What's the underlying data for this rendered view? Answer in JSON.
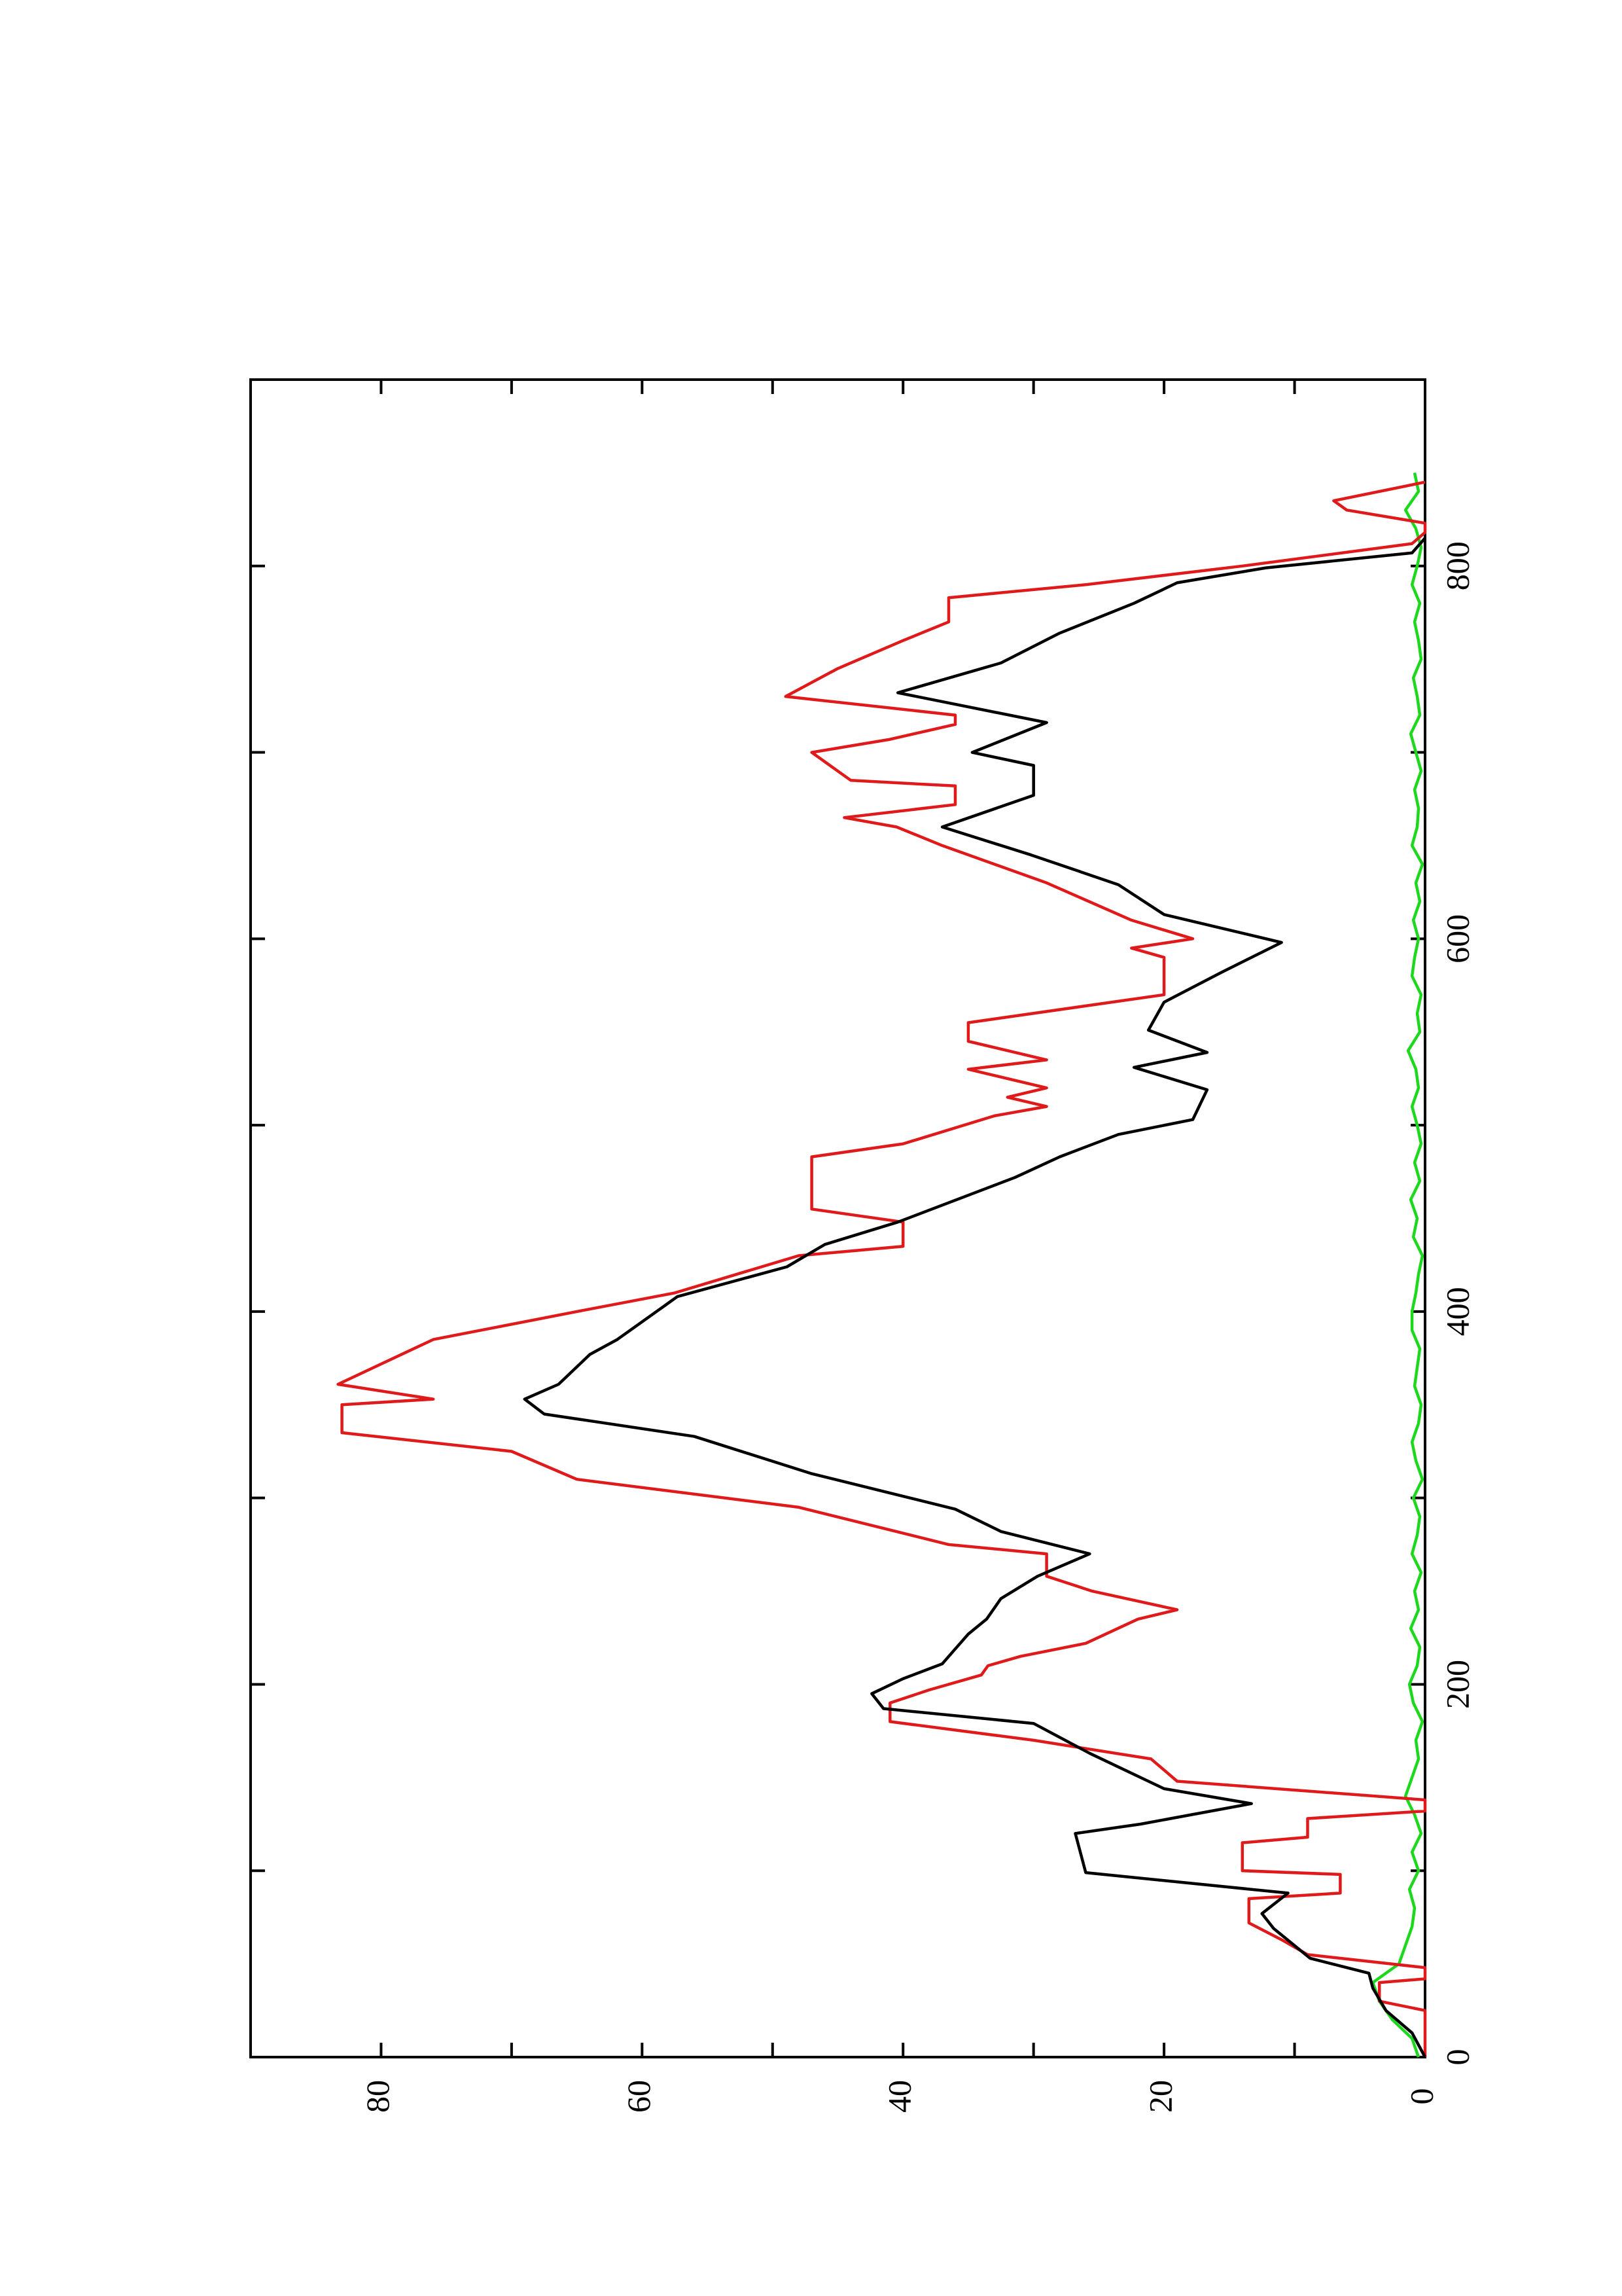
{
  "chart_data": {
    "type": "line",
    "rotated": true,
    "xlim": [
      0,
      900
    ],
    "xticks": [
      0,
      200,
      400,
      600,
      800
    ],
    "xticks_minor": [
      100,
      300,
      500,
      700
    ],
    "ylim": [
      0,
      90
    ],
    "yticks": [
      0,
      20,
      40,
      60,
      80
    ],
    "yticks_minor": [
      10,
      30,
      50,
      70
    ],
    "series": [
      {
        "color": "#000000",
        "x": [
          0,
          13,
          25,
          37,
          45,
          53,
          69,
          77,
          88,
          99,
          120,
          125,
          136,
          144,
          163,
          179,
          187,
          195,
          203,
          211,
          219,
          227,
          235,
          246,
          258,
          270,
          282,
          294,
          313,
          333,
          345,
          353,
          361,
          377,
          385,
          408,
          424,
          436,
          448,
          472,
          483,
          495,
          503,
          519,
          531,
          539,
          551,
          566,
          582,
          598,
          613,
          629,
          645,
          660,
          677,
          693,
          700,
          716,
          732,
          748,
          764,
          780,
          791,
          799,
          807,
          815
        ],
        "values": [
          0,
          1,
          3,
          4,
          4.3,
          8.8,
          11.6,
          12.5,
          10.5,
          26,
          26.8,
          21.8,
          13.3,
          20,
          25.7,
          30,
          41.5,
          42.4,
          40,
          37,
          36,
          35,
          33.6,
          32.5,
          29.7,
          25.7,
          32.5,
          36,
          47,
          56,
          67.5,
          69,
          66.4,
          64,
          61.9,
          57.3,
          48.9,
          46,
          40.4,
          31.4,
          28,
          23.5,
          17.8,
          16.7,
          22.3,
          16.7,
          21.2,
          20,
          15.6,
          11,
          20,
          23.5,
          30.2,
          37,
          30,
          30,
          34.7,
          29,
          40.4,
          32.5,
          28,
          22.3,
          19,
          12.2,
          1,
          0
        ]
      },
      {
        "color": "#e0191b",
        "x": [
          0,
          25,
          30,
          40,
          42,
          48,
          55,
          63,
          72,
          85,
          88,
          98,
          100,
          115,
          118,
          128,
          132,
          138,
          148,
          160,
          170,
          180,
          190,
          197,
          205,
          210,
          215,
          222,
          235,
          240,
          250,
          258,
          270,
          275,
          295,
          310,
          325,
          335,
          350,
          353,
          361,
          385,
          400,
          410,
          430,
          435,
          448,
          455,
          483,
          490,
          505,
          510,
          515,
          520,
          530,
          535,
          545,
          555,
          570,
          590,
          595,
          600,
          610,
          630,
          650,
          660,
          665,
          672,
          682,
          685,
          700,
          707,
          715,
          720,
          730,
          745,
          760,
          770,
          783,
          790,
          800,
          812,
          818,
          823,
          830,
          835,
          845
        ],
        "values": [
          0,
          0,
          3.5,
          3.5,
          0,
          0,
          9,
          11,
          13.5,
          13.5,
          6.5,
          6.5,
          14,
          14,
          9,
          9,
          0,
          0,
          19,
          21,
          30,
          41,
          41,
          38,
          34,
          33.5,
          31,
          26,
          22,
          19,
          25.5,
          29,
          29,
          36.5,
          48,
          65,
          70,
          83,
          83,
          76,
          83.3,
          76,
          65,
          57.5,
          48,
          40,
          40,
          47,
          47,
          40,
          33,
          29,
          32,
          29,
          35,
          29,
          35,
          35,
          20,
          20,
          22.5,
          17.8,
          22.5,
          29,
          37,
          40.5,
          44.5,
          36,
          36,
          44,
          47,
          41,
          36,
          36,
          49,
          45,
          40,
          36.5,
          36.5,
          26,
          14,
          1,
          0,
          0,
          6,
          7,
          0
        ]
      },
      {
        "color": "#1ed81e",
        "x": [
          0,
          10,
          20,
          30,
          40,
          50,
          60,
          70,
          80,
          90,
          100,
          110,
          120,
          130,
          140,
          150,
          160,
          170,
          180,
          190,
          200,
          210,
          220,
          230,
          240,
          250,
          260,
          270,
          280,
          290,
          300,
          310,
          320,
          330,
          340,
          350,
          360,
          370,
          380,
          390,
          400,
          410,
          420,
          430,
          440,
          450,
          460,
          470,
          480,
          490,
          500,
          510,
          520,
          530,
          540,
          550,
          560,
          570,
          580,
          590,
          600,
          610,
          620,
          630,
          640,
          650,
          660,
          670,
          680,
          690,
          700,
          710,
          720,
          730,
          740,
          750,
          760,
          770,
          780,
          790,
          800,
          810,
          820,
          830,
          840,
          850
        ],
        "values": [
          0.5,
          1,
          2.5,
          3.5,
          4,
          2,
          1.5,
          1,
          0.8,
          1.2,
          0.5,
          1,
          0.3,
          0.8,
          1.5,
          1,
          0.5,
          0.7,
          0.2,
          0.9,
          1.2,
          0.6,
          0.4,
          1.1,
          0.5,
          0.8,
          0.3,
          1,
          0.6,
          0.4,
          0.9,
          0.2,
          0.7,
          1,
          0.5,
          0.3,
          0.8,
          0.6,
          0.4,
          1,
          1,
          0.7,
          0.5,
          0.2,
          0.9,
          0.6,
          1.1,
          0.4,
          0.8,
          0.3,
          0.6,
          1,
          0.5,
          0.7,
          1.3,
          0.4,
          0.6,
          0.3,
          1,
          0.8,
          0.5,
          0.9,
          0.4,
          0.7,
          0.2,
          1,
          0.6,
          0.5,
          0.8,
          0.3,
          0.7,
          1.1,
          0.4,
          0.6,
          0.9,
          0.3,
          0.5,
          0.8,
          0.4,
          1,
          0.6,
          0.3,
          0.7,
          1.5,
          0.5,
          0.8
        ]
      }
    ]
  }
}
